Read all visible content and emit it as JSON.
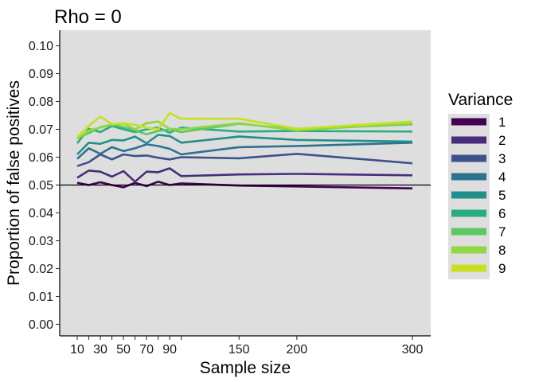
{
  "chart_data": {
    "type": "line",
    "title": "Rho = 0",
    "xlabel": "Sample size",
    "ylabel": "Proportion of false positives",
    "xlim": [
      0,
      310
    ],
    "ylim": [
      -0.004,
      0.105
    ],
    "x_ticks": [
      10,
      30,
      50,
      70,
      90,
      150,
      200,
      300
    ],
    "x_tick_labels": [
      "10",
      "30",
      "50",
      "70",
      "90",
      "150",
      "200",
      "300"
    ],
    "x_minor_ticks": [
      20,
      40,
      60,
      80,
      100
    ],
    "y_ticks": [
      0,
      0.01,
      0.02,
      0.03,
      0.04,
      0.05,
      0.06,
      0.07,
      0.08,
      0.09,
      0.1
    ],
    "y_tick_labels": [
      "0.00",
      "0.01",
      "0.02",
      "0.03",
      "0.04",
      "0.05",
      "0.06",
      "0.07",
      "0.08",
      "0.09",
      "0.10"
    ],
    "hline": 0.05,
    "grid": false,
    "legend_title": "Variance",
    "legend_position": "right",
    "x": [
      10,
      20,
      30,
      40,
      50,
      60,
      70,
      80,
      90,
      100,
      150,
      200,
      300
    ],
    "series": [
      {
        "name": "1",
        "color": "#440154",
        "values": [
          0.0508,
          0.05,
          0.051,
          0.05,
          0.0492,
          0.0508,
          0.0496,
          0.0512,
          0.05,
          0.0506,
          0.0498,
          0.0495,
          0.0488
        ]
      },
      {
        "name": "2",
        "color": "#472D7B",
        "values": [
          0.0526,
          0.0552,
          0.0548,
          0.053,
          0.055,
          0.0512,
          0.0548,
          0.0546,
          0.056,
          0.0532,
          0.0538,
          0.054,
          0.0535
        ]
      },
      {
        "name": "3",
        "color": "#3B528B",
        "values": [
          0.0568,
          0.0582,
          0.061,
          0.0592,
          0.061,
          0.0604,
          0.0606,
          0.0598,
          0.0592,
          0.06,
          0.0596,
          0.0612,
          0.0578
        ]
      },
      {
        "name": "4",
        "color": "#2C728E",
        "values": [
          0.0594,
          0.0632,
          0.0612,
          0.0636,
          0.0622,
          0.0632,
          0.0646,
          0.064,
          0.063,
          0.061,
          0.0636,
          0.064,
          0.0652
        ]
      },
      {
        "name": "5",
        "color": "#21908C",
        "values": [
          0.061,
          0.0652,
          0.0648,
          0.0662,
          0.066,
          0.0674,
          0.065,
          0.068,
          0.0676,
          0.0652,
          0.0674,
          0.0662,
          0.0656
        ]
      },
      {
        "name": "6",
        "color": "#27AD81",
        "values": [
          0.065,
          0.0702,
          0.069,
          0.0712,
          0.07,
          0.069,
          0.07,
          0.0706,
          0.0688,
          0.0706,
          0.0692,
          0.0694,
          0.0692
        ]
      },
      {
        "name": "7",
        "color": "#5DC863",
        "values": [
          0.067,
          0.0686,
          0.0708,
          0.0716,
          0.0708,
          0.0696,
          0.0682,
          0.0694,
          0.07,
          0.069,
          0.072,
          0.07,
          0.0718
        ]
      },
      {
        "name": "8",
        "color": "#8FD744",
        "values": [
          0.0666,
          0.0696,
          0.0706,
          0.0718,
          0.072,
          0.07,
          0.0722,
          0.0728,
          0.0702,
          0.07,
          0.0722,
          0.0696,
          0.0722
        ]
      },
      {
        "name": "9",
        "color": "#C8E020",
        "values": [
          0.0672,
          0.0712,
          0.0746,
          0.0718,
          0.0722,
          0.0716,
          0.0706,
          0.07,
          0.0758,
          0.0738,
          0.0738,
          0.0702,
          0.0728
        ]
      }
    ]
  }
}
